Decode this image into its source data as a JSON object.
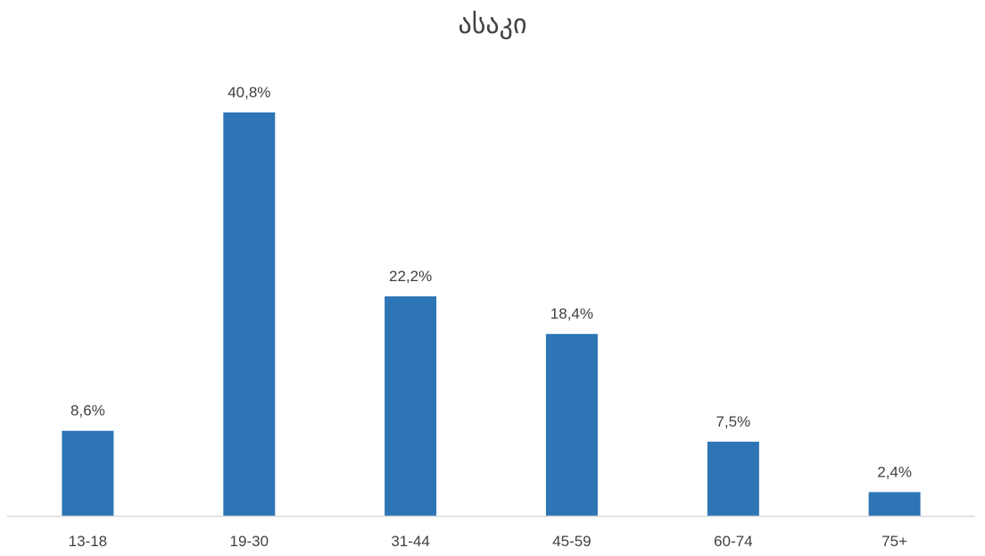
{
  "chart_data": {
    "type": "bar",
    "title": "ასაკი",
    "categories": [
      "13-18",
      "19-30",
      "31-44",
      "45-59",
      "60-74",
      "75+"
    ],
    "values": [
      8.6,
      40.8,
      22.2,
      18.4,
      7.5,
      2.4
    ],
    "value_labels": [
      "8,6%",
      "40,8%",
      "22,2%",
      "18,4%",
      "7,5%",
      "2,4%"
    ],
    "ylim": [
      0,
      42
    ],
    "grid": false,
    "legend": "none",
    "colors": {
      "bar": "#2E75B6",
      "axis": "#D9D9D9",
      "text": "#404040"
    }
  }
}
